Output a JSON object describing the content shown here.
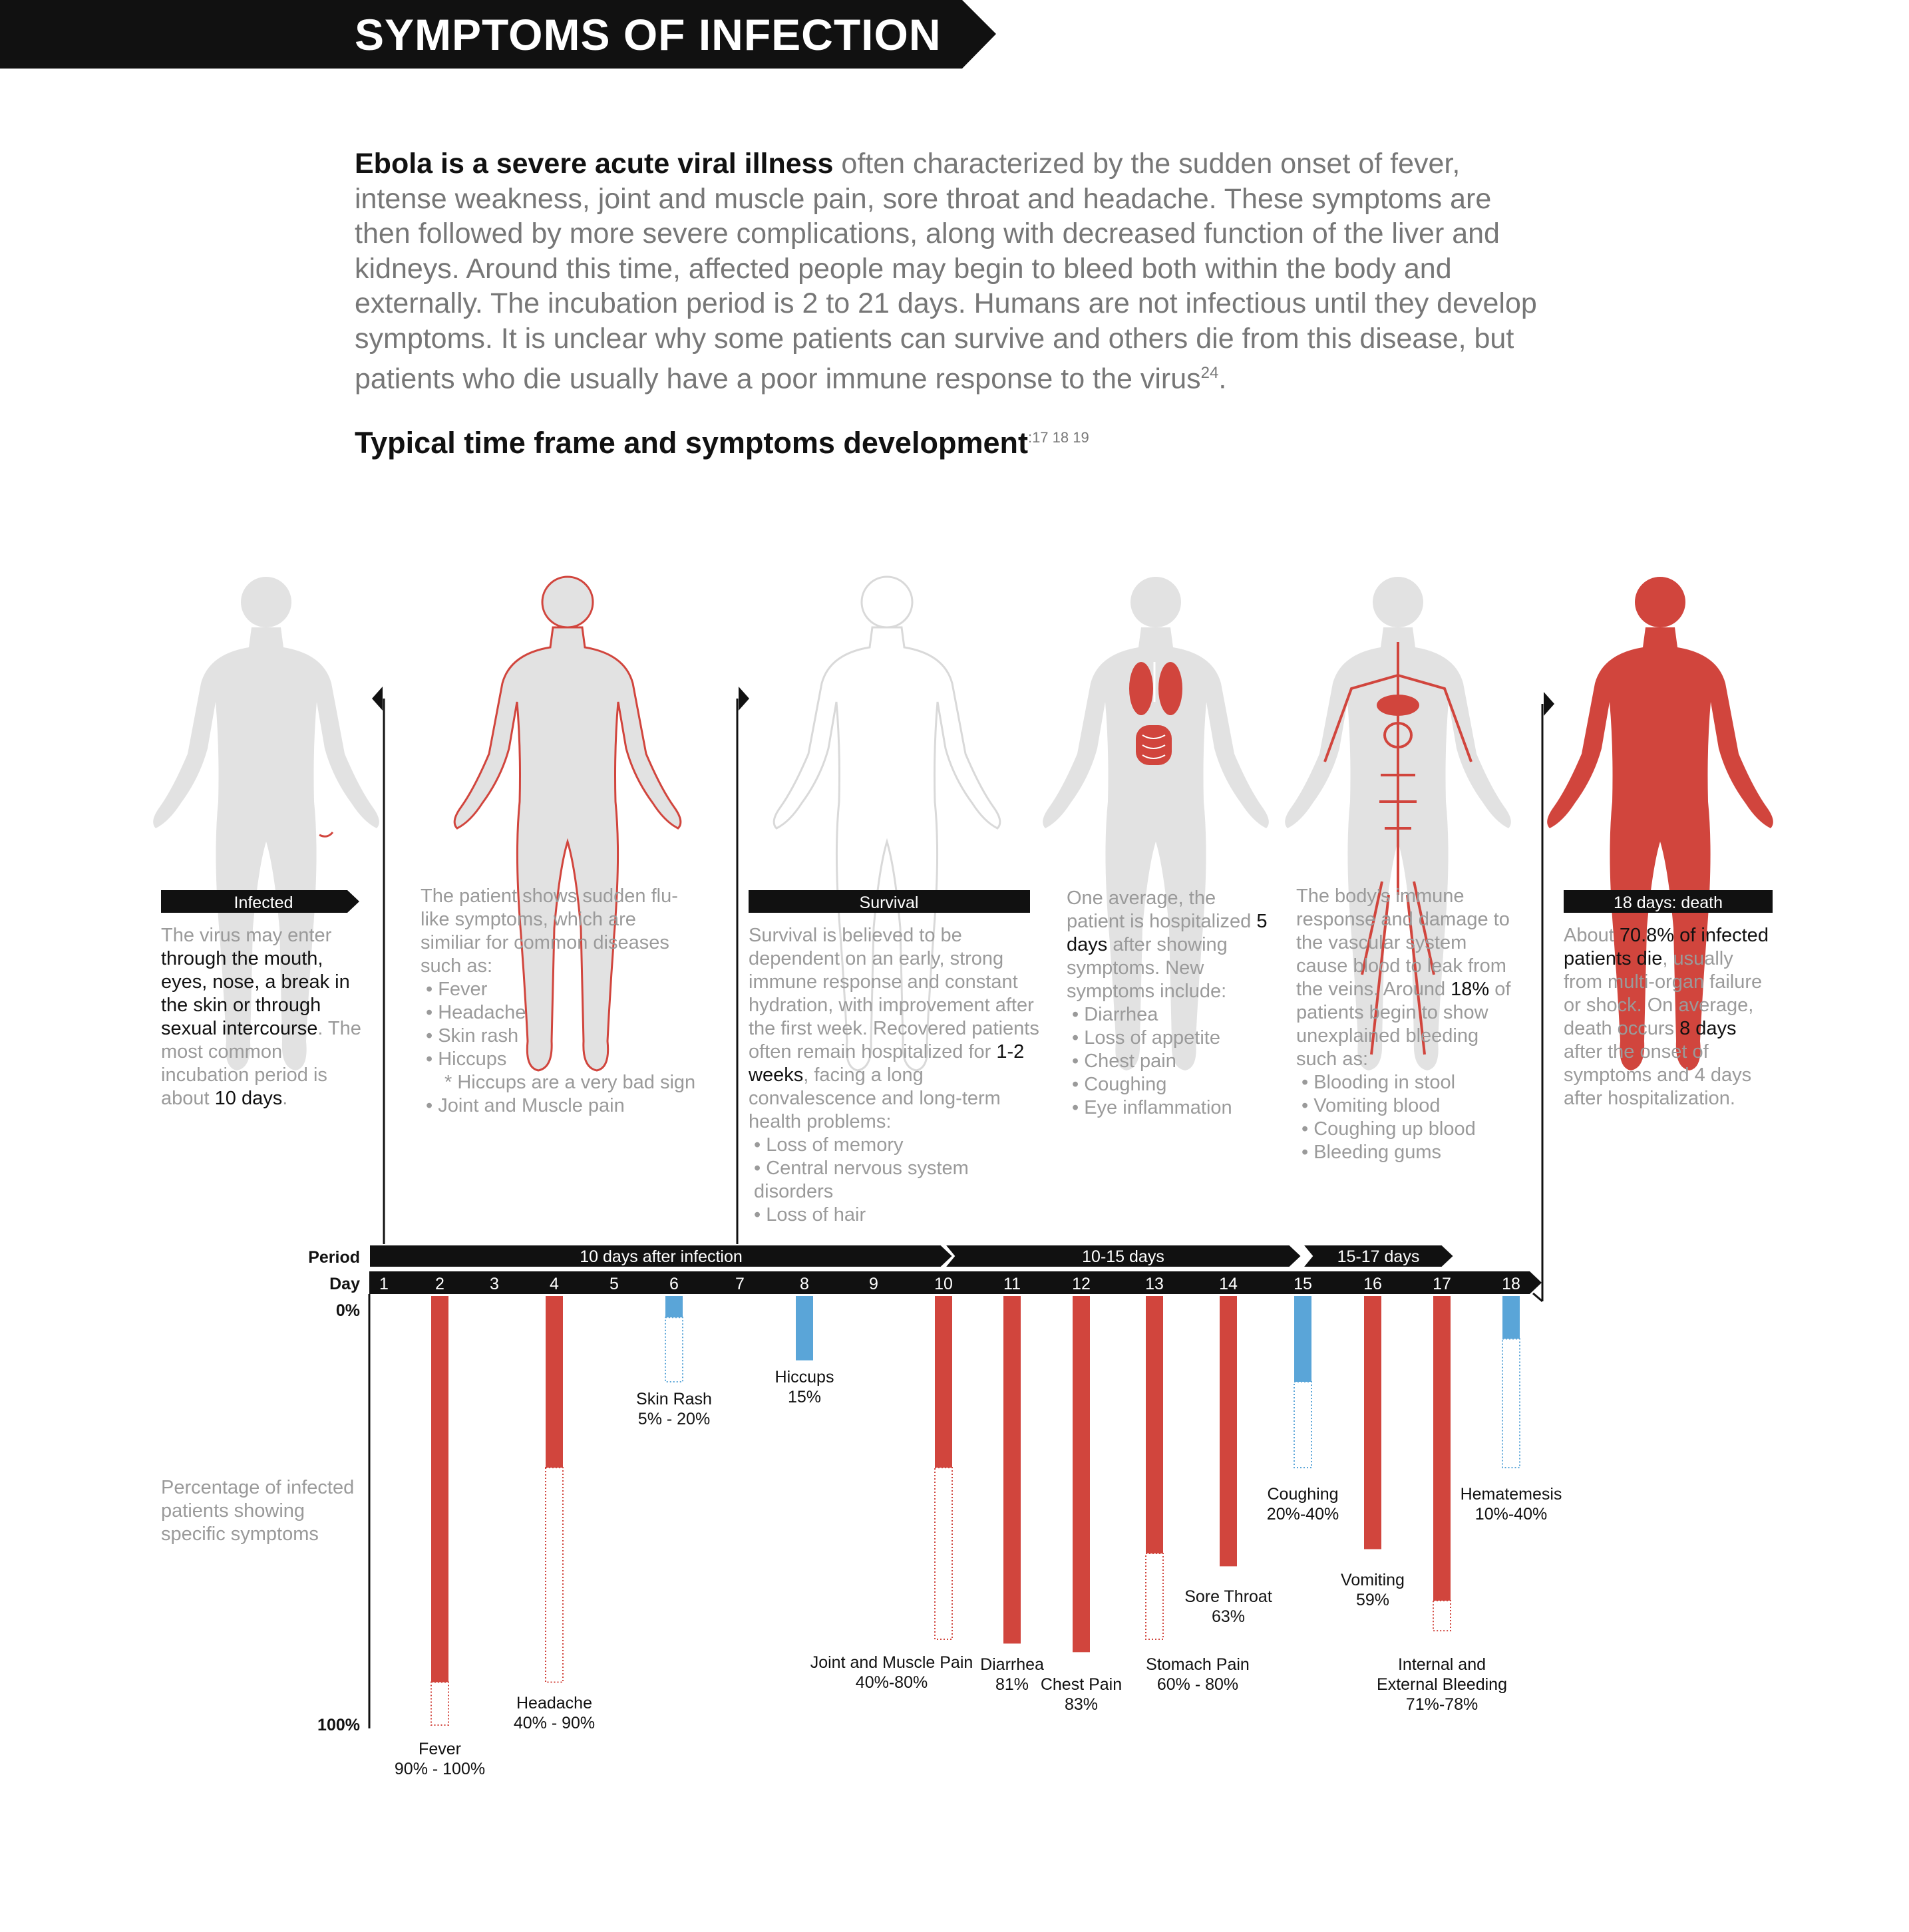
{
  "header": {
    "title": "SYMPTOMS OF INFECTION"
  },
  "intro": {
    "lead": "Ebola is a severe acute viral illness",
    "body": " often characterized by the sudden onset of fever, intense weakness, joint and muscle pain, sore throat and headache. These symptoms are then followed by more severe complications, along with decreased function of the liver and kidneys. Around this time, affected people may begin to bleed both within the body and externally. The incubation period is 2 to 21 days. Humans are not infectious until they develop symptoms. It is unclear why some patients can survive and others die from this disease, but patients who die usually have a poor immune response to the virus",
    "ref": "24",
    "end": "."
  },
  "subhead": {
    "text": "Typical time frame and symptoms development",
    "refs": ":17 18 19"
  },
  "stages": {
    "infected": {
      "label": "Infected",
      "t1": "The virus may enter ",
      "k1": "through the mouth, eyes, nose, a break in the skin or through sexual intercourse",
      "t2": ". The most common incubation period is about ",
      "k2": "10 days",
      "t3": "."
    },
    "flu": {
      "text": "The patient shows sudden flu-like symptoms, which are similiar for common diseases such as:",
      "items": [
        "Fever",
        "Headache",
        "Skin rash",
        "Hiccups"
      ],
      "note": "* Hiccups are a very bad sign",
      "last": "Joint and Muscle pain"
    },
    "survival": {
      "label": "Survival",
      "t1": "Survival is believed to be dependent on an early, strong immune response and constant hydration, with improvement after the first week. Recovered patients often remain hospitalized for ",
      "k1": "1-2 weeks",
      "t2": ", facing a long convalescence and long-term health problems:",
      "items": [
        "Loss of memory",
        "Central nervous system disorders",
        "Loss of hair"
      ]
    },
    "hospital": {
      "t1": "One average, the patient is hospitalized ",
      "k1": "5 days",
      "t2": " after showing symptoms. New symptoms include:",
      "items": [
        "Diarrhea",
        "Loss of appetite",
        "Chest pain",
        "Coughing",
        "Eye inflammation"
      ]
    },
    "bleeding": {
      "t1": "The body’s immune response and damage to the vascular system cause blood to leak from the veins. Around ",
      "k1": "18%",
      "t2": " of patients begin to show unexplained bleeding such as:",
      "items": [
        "Blooding in stool",
        "Vomiting blood",
        "Coughing up blood",
        "Bleeding gums"
      ]
    },
    "death": {
      "label": "18 days: death",
      "t1": "About ",
      "k1": "70.8% of infected patients die",
      "t2": ", usually from multi-organ failure or shock. On average, death occurs ",
      "k2": "8 days",
      "t3": " after the onset of symptoms and 4 days after hospitalization."
    }
  },
  "colors": {
    "red": "#d1453d",
    "blue": "#5aa5d8",
    "black": "#111111",
    "grey_figure": "#e2e2e2",
    "text_grey": "#9a9a9a"
  },
  "chart_data": {
    "type": "bar",
    "period_label": "Period",
    "day_label": "Day",
    "periods": [
      {
        "label": "10 days after infection",
        "from_day": 1,
        "to_day": 10
      },
      {
        "label": "10-15 days",
        "from_day": 10,
        "to_day": 15
      },
      {
        "label": "15-17 days",
        "from_day": 15,
        "to_day": 17
      }
    ],
    "days": [
      1,
      2,
      3,
      4,
      5,
      6,
      7,
      8,
      9,
      10,
      11,
      12,
      13,
      14,
      15,
      16,
      17,
      18
    ],
    "y_min_label": "0%",
    "y_max_label": "100%",
    "ylim": [
      0,
      100
    ],
    "y_note": "Percentage of infected patients showing specific symptoms",
    "symptoms": [
      {
        "name": "Fever",
        "pct_label": "90% - 100%",
        "day": 2,
        "low": 90,
        "high": 100,
        "color": "red"
      },
      {
        "name": "Headache",
        "pct_label": "40% - 90%",
        "day": 4,
        "low": 40,
        "high": 90,
        "color": "red"
      },
      {
        "name": "Skin Rash",
        "pct_label": "5% - 20%",
        "day": 6,
        "low": 5,
        "high": 20,
        "color": "blue"
      },
      {
        "name": "Hiccups",
        "pct_label": "15%",
        "day": 8,
        "low": 15,
        "high": 15,
        "color": "blue"
      },
      {
        "name": "Joint and Muscle Pain",
        "pct_label": "40%-80%",
        "day": 10,
        "low": 40,
        "high": 80,
        "color": "red"
      },
      {
        "name": "Diarrhea",
        "pct_label": "81%",
        "day": 11,
        "low": 81,
        "high": 81,
        "color": "red"
      },
      {
        "name": "Chest Pain",
        "pct_label": "83%",
        "day": 12,
        "low": 83,
        "high": 83,
        "color": "red"
      },
      {
        "name": "Stomach Pain",
        "pct_label": "60% - 80%",
        "day": 13,
        "low": 60,
        "high": 80,
        "color": "red"
      },
      {
        "name": "Sore Throat",
        "pct_label": "63%",
        "day": 14,
        "low": 63,
        "high": 63,
        "color": "red"
      },
      {
        "name": "Coughing",
        "pct_label": "20%-40%",
        "day": 15,
        "low": 20,
        "high": 40,
        "color": "blue"
      },
      {
        "name": "Vomiting",
        "pct_label": "59%",
        "day": 16,
        "low": 59,
        "high": 59,
        "color": "red"
      },
      {
        "name": "Internal and External Bleeding",
        "pct_label": "71%-78%",
        "day": 17,
        "low": 71,
        "high": 78,
        "color": "red"
      },
      {
        "name": "Hematemesis",
        "pct_label": "10%-40%",
        "day": 18,
        "low": 10,
        "high": 40,
        "color": "blue"
      }
    ]
  }
}
